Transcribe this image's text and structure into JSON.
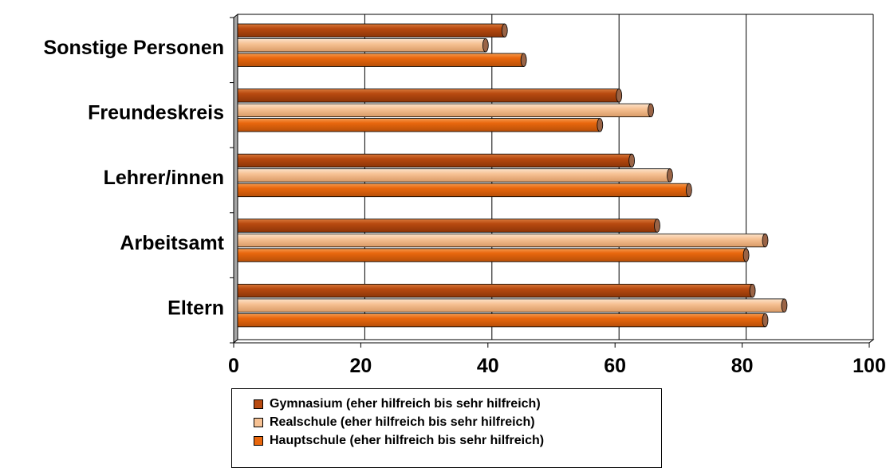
{
  "chart_data": {
    "type": "bar",
    "orientation": "horizontal",
    "categories": [
      "Sonstige Personen",
      "Freundeskreis",
      "Lehrer/innen",
      "Arbeitsamt",
      "Eltern"
    ],
    "series": [
      {
        "name": "Gymnasium (eher hilfreich bis sehr hilfreich)",
        "color": "#B84A10",
        "values": [
          42,
          60,
          62,
          66,
          81
        ]
      },
      {
        "name": "Realschule (eher hilfreich bis sehr hilfreich)",
        "color": "#F6C193",
        "values": [
          39,
          65,
          68,
          83,
          86
        ]
      },
      {
        "name": "Hauptschule (eher hilfreich bis sehr hilfreich)",
        "color": "#E9670D",
        "values": [
          45,
          57,
          71,
          80,
          83
        ]
      }
    ],
    "xlim": [
      0,
      100
    ],
    "xticks": [
      "0",
      "20",
      "40",
      "60",
      "80",
      "100"
    ],
    "grid": "vertical",
    "legend": "bottom"
  }
}
